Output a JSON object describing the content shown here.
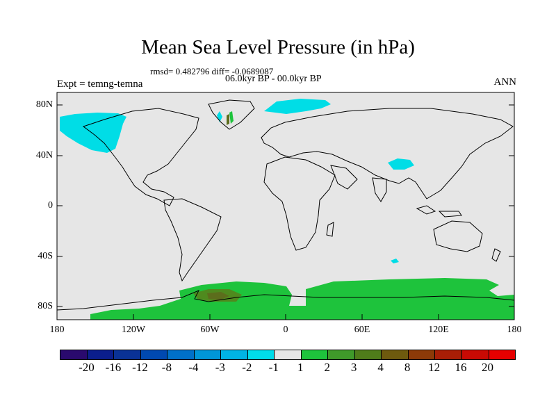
{
  "title": "Mean Sea Level Pressure (in hPa)",
  "stats": "rmsd= 0.482796 diff= -0.0689087",
  "period": "06.0kyr BP - 00.0kyr BP",
  "experiment": "Expt = temng-temna",
  "season": "ANN",
  "axes": {
    "y_ticks": [
      "80N",
      "40N",
      "0",
      "40S",
      "80S"
    ],
    "x_ticks": [
      "180",
      "120W",
      "60W",
      "0",
      "60E",
      "120E",
      "180"
    ]
  },
  "colors": {
    "ocean_background": "#e6e6e6",
    "coastline": "#000000",
    "anomaly_neg": "#00dde6",
    "anomaly_pos": "#1ec33c",
    "anomaly_pos_mid": "#4f8a1e",
    "anomaly_pos_high": "#5c6d1c"
  },
  "colorbar": {
    "labels": [
      "-20",
      "-16",
      "-12",
      "-8",
      "-4",
      "-3",
      "-2",
      "-1",
      "1",
      "2",
      "3",
      "4",
      "8",
      "12",
      "16",
      "20"
    ],
    "colors": [
      "#2a0a6e",
      "#0b1e8c",
      "#0a3296",
      "#0049b0",
      "#0070c8",
      "#0096d8",
      "#00b4e4",
      "#00dcea",
      "#e6e6e6",
      "#1ec33c",
      "#3f9a2a",
      "#4f7c1a",
      "#6e5a0e",
      "#8c3a08",
      "#a81e06",
      "#c80a04",
      "#e60000"
    ]
  }
}
